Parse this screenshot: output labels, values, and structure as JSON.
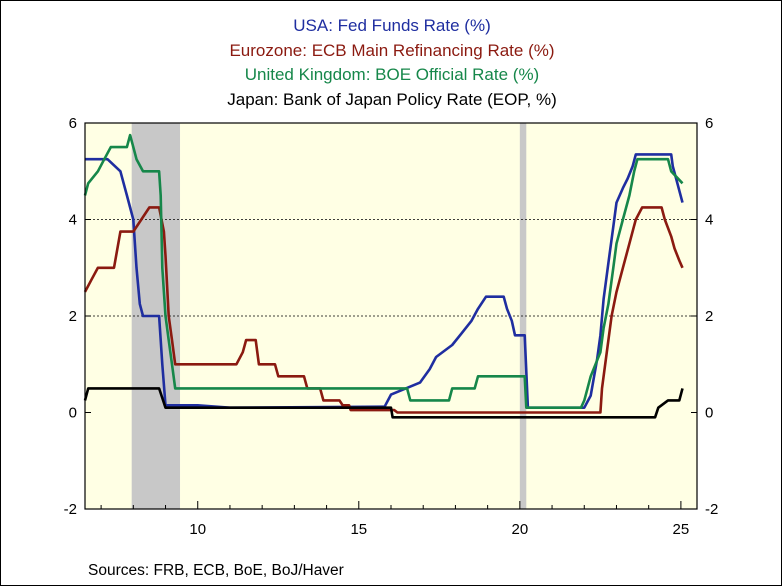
{
  "titles": [
    {
      "text": "USA:  Fed Funds Rate (%)",
      "color": "#1f2ea0"
    },
    {
      "text": "Eurozone:  ECB Main Refinancing Rate (%)",
      "color": "#8b1a10"
    },
    {
      "text": "United Kingdom:  BOE Official Rate (%)",
      "color": "#16874a"
    },
    {
      "text": "Japan: Bank of Japan Policy Rate (EOP, %)",
      "color": "#000000"
    }
  ],
  "source": "Sources:  FRB, ECB, BoE, BoJ/Haver",
  "chart_data": {
    "type": "line",
    "xlim": [
      2006.5,
      2025.5
    ],
    "ylim": [
      -2,
      6
    ],
    "x_ticks": [
      2010,
      2015,
      2020,
      2025
    ],
    "x_tick_labels": [
      "10",
      "15",
      "20",
      "25"
    ],
    "y_ticks": [
      -2,
      0,
      2,
      4,
      6
    ],
    "y_tick_labels": [
      "-2",
      "0",
      "2",
      "4",
      "6"
    ],
    "gridlines_y": [
      2,
      4
    ],
    "background": "#ffffe4",
    "recession_bands": [
      [
        2007.95,
        2009.45
      ],
      [
        2020.0,
        2020.2
      ]
    ],
    "recession_color": "#c8c8c8",
    "series": [
      {
        "name": "USA:  Fed Funds Rate (%)",
        "color": "#1f2ea0",
        "points": [
          [
            2006.5,
            5.25
          ],
          [
            2007.2,
            5.25
          ],
          [
            2007.6,
            5.0
          ],
          [
            2007.8,
            4.5
          ],
          [
            2008.0,
            4.0
          ],
          [
            2008.1,
            3.0
          ],
          [
            2008.2,
            2.25
          ],
          [
            2008.3,
            2.0
          ],
          [
            2008.8,
            2.0
          ],
          [
            2008.9,
            1.0
          ],
          [
            2009.0,
            0.15
          ],
          [
            2010.0,
            0.15
          ],
          [
            2011.0,
            0.1
          ],
          [
            2015.8,
            0.12
          ],
          [
            2016.0,
            0.37
          ],
          [
            2016.9,
            0.62
          ],
          [
            2017.2,
            0.9
          ],
          [
            2017.4,
            1.15
          ],
          [
            2017.9,
            1.4
          ],
          [
            2018.2,
            1.65
          ],
          [
            2018.5,
            1.9
          ],
          [
            2018.7,
            2.15
          ],
          [
            2018.95,
            2.4
          ],
          [
            2019.5,
            2.4
          ],
          [
            2019.6,
            2.15
          ],
          [
            2019.75,
            1.9
          ],
          [
            2019.85,
            1.6
          ],
          [
            2020.15,
            1.6
          ],
          [
            2020.25,
            0.1
          ],
          [
            2022.0,
            0.1
          ],
          [
            2022.2,
            0.35
          ],
          [
            2022.4,
            1.1
          ],
          [
            2022.5,
            1.6
          ],
          [
            2022.6,
            2.35
          ],
          [
            2022.75,
            3.1
          ],
          [
            2022.9,
            3.85
          ],
          [
            2023.0,
            4.35
          ],
          [
            2023.2,
            4.65
          ],
          [
            2023.35,
            4.85
          ],
          [
            2023.5,
            5.1
          ],
          [
            2023.6,
            5.35
          ],
          [
            2024.7,
            5.35
          ],
          [
            2024.75,
            5.1
          ],
          [
            2024.85,
            4.85
          ],
          [
            2024.95,
            4.6
          ],
          [
            2025.05,
            4.35
          ]
        ]
      },
      {
        "name": "Eurozone:  ECB Main Refinancing Rate (%)",
        "color": "#8b1a10",
        "points": [
          [
            2006.5,
            2.5
          ],
          [
            2006.7,
            2.75
          ],
          [
            2006.9,
            3.0
          ],
          [
            2007.4,
            3.0
          ],
          [
            2007.6,
            3.75
          ],
          [
            2008.0,
            3.75
          ],
          [
            2008.5,
            4.25
          ],
          [
            2008.8,
            4.25
          ],
          [
            2008.95,
            3.75
          ],
          [
            2009.0,
            3.25
          ],
          [
            2009.1,
            2.0
          ],
          [
            2009.2,
            1.5
          ],
          [
            2009.3,
            1.0
          ],
          [
            2011.2,
            1.0
          ],
          [
            2011.4,
            1.25
          ],
          [
            2011.5,
            1.5
          ],
          [
            2011.8,
            1.5
          ],
          [
            2011.9,
            1.0
          ],
          [
            2012.4,
            1.0
          ],
          [
            2012.5,
            0.75
          ],
          [
            2013.3,
            0.75
          ],
          [
            2013.4,
            0.5
          ],
          [
            2013.8,
            0.5
          ],
          [
            2013.9,
            0.25
          ],
          [
            2014.4,
            0.25
          ],
          [
            2014.5,
            0.15
          ],
          [
            2014.7,
            0.15
          ],
          [
            2014.75,
            0.05
          ],
          [
            2016.1,
            0.05
          ],
          [
            2016.2,
            0.0
          ],
          [
            2022.5,
            0.0
          ],
          [
            2022.55,
            0.5
          ],
          [
            2022.7,
            1.25
          ],
          [
            2022.85,
            2.0
          ],
          [
            2023.0,
            2.5
          ],
          [
            2023.2,
            3.0
          ],
          [
            2023.4,
            3.5
          ],
          [
            2023.6,
            4.0
          ],
          [
            2023.8,
            4.25
          ],
          [
            2024.4,
            4.25
          ],
          [
            2024.5,
            4.0
          ],
          [
            2024.7,
            3.65
          ],
          [
            2024.8,
            3.4
          ],
          [
            2024.95,
            3.15
          ],
          [
            2025.05,
            3.0
          ]
        ]
      },
      {
        "name": "United Kingdom:  BOE Official Rate (%)",
        "color": "#16874a",
        "points": [
          [
            2006.5,
            4.5
          ],
          [
            2006.6,
            4.75
          ],
          [
            2006.9,
            5.0
          ],
          [
            2007.1,
            5.25
          ],
          [
            2007.3,
            5.5
          ],
          [
            2007.8,
            5.5
          ],
          [
            2007.9,
            5.75
          ],
          [
            2008.0,
            5.5
          ],
          [
            2008.1,
            5.25
          ],
          [
            2008.3,
            5.0
          ],
          [
            2008.8,
            5.0
          ],
          [
            2008.85,
            4.5
          ],
          [
            2008.9,
            3.0
          ],
          [
            2009.0,
            2.0
          ],
          [
            2009.1,
            1.5
          ],
          [
            2009.2,
            1.0
          ],
          [
            2009.3,
            0.5
          ],
          [
            2016.5,
            0.5
          ],
          [
            2016.6,
            0.25
          ],
          [
            2017.8,
            0.25
          ],
          [
            2017.9,
            0.5
          ],
          [
            2018.6,
            0.5
          ],
          [
            2018.7,
            0.75
          ],
          [
            2020.15,
            0.75
          ],
          [
            2020.2,
            0.1
          ],
          [
            2021.9,
            0.1
          ],
          [
            2022.0,
            0.25
          ],
          [
            2022.1,
            0.5
          ],
          [
            2022.2,
            0.75
          ],
          [
            2022.35,
            1.0
          ],
          [
            2022.5,
            1.25
          ],
          [
            2022.6,
            1.75
          ],
          [
            2022.75,
            2.25
          ],
          [
            2022.9,
            3.0
          ],
          [
            2023.0,
            3.5
          ],
          [
            2023.2,
            4.0
          ],
          [
            2023.4,
            4.5
          ],
          [
            2023.55,
            5.0
          ],
          [
            2023.65,
            5.25
          ],
          [
            2024.6,
            5.25
          ],
          [
            2024.7,
            5.0
          ],
          [
            2025.05,
            4.75
          ]
        ]
      },
      {
        "name": "Japan: Bank of Japan Policy Rate (EOP, %)",
        "color": "#000000",
        "points": [
          [
            2006.5,
            0.25
          ],
          [
            2006.6,
            0.5
          ],
          [
            2008.8,
            0.5
          ],
          [
            2008.9,
            0.3
          ],
          [
            2009.0,
            0.1
          ],
          [
            2016.0,
            0.1
          ],
          [
            2016.05,
            -0.1
          ],
          [
            2024.2,
            -0.1
          ],
          [
            2024.3,
            0.1
          ],
          [
            2024.6,
            0.25
          ],
          [
            2024.95,
            0.25
          ],
          [
            2025.05,
            0.5
          ]
        ]
      }
    ]
  }
}
